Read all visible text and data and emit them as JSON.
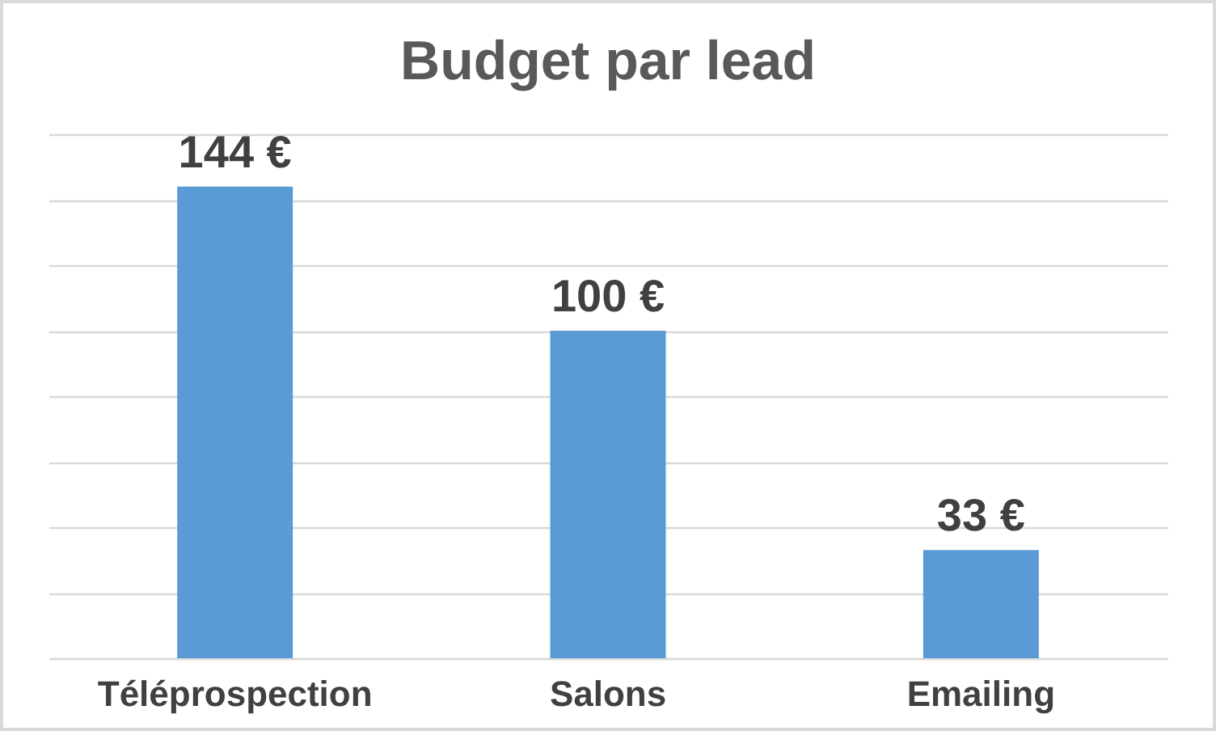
{
  "chart_data": {
    "type": "bar",
    "title": "Budget par lead",
    "categories": [
      "Téléprospection",
      "Salons",
      "Emailing"
    ],
    "values": [
      144,
      100,
      33
    ],
    "value_labels": [
      "144 €",
      "100 €",
      "33 €"
    ],
    "color": "#5b9bd5",
    "ylim": [
      0,
      160
    ],
    "yticks": [
      {
        "value": 0,
        "label": null
      },
      {
        "value": 20,
        "label": null
      },
      {
        "value": 40,
        "label": null
      },
      {
        "value": 60,
        "label": null
      },
      {
        "value": 80,
        "label": null
      },
      {
        "value": 100,
        "label": null
      },
      {
        "value": 120,
        "label": null
      },
      {
        "value": 140,
        "label": null
      },
      {
        "value": 160,
        "label": null
      }
    ],
    "grid": "y"
  }
}
